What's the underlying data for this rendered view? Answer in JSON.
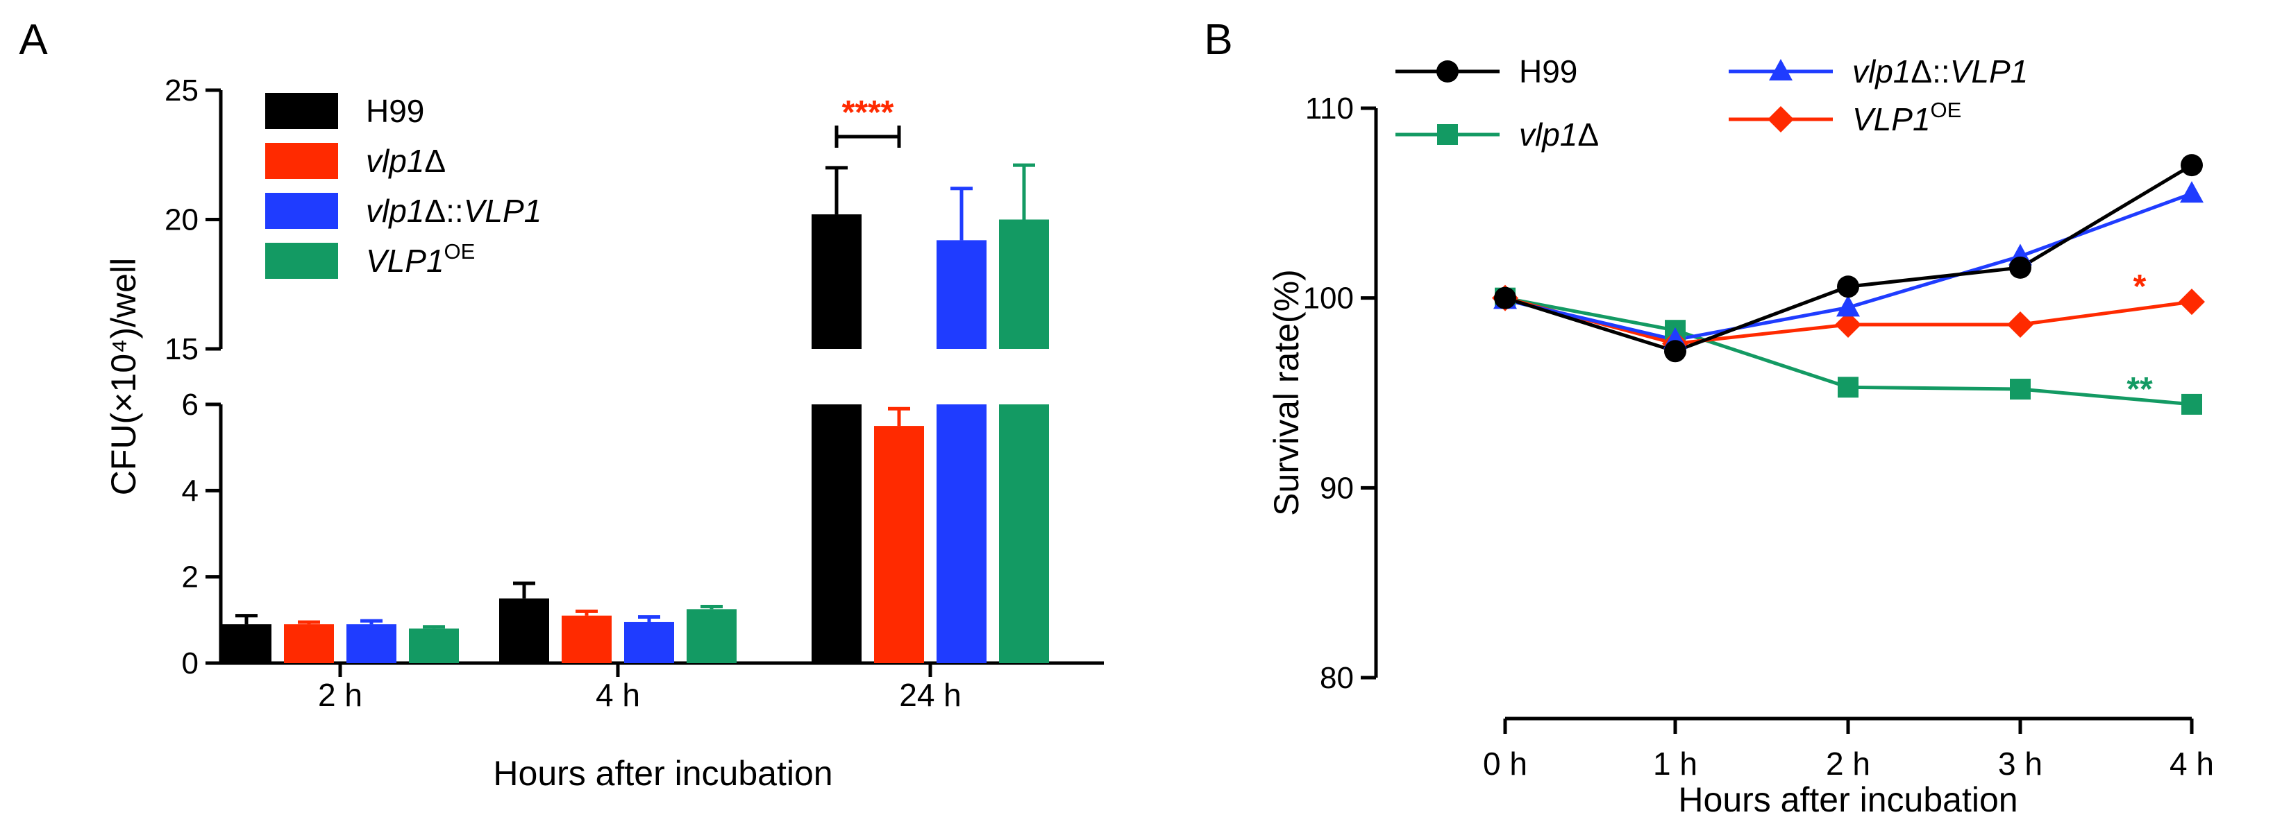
{
  "colors": {
    "H99": "#000000",
    "vlp1d": "#ff2a00",
    "vlp1d_vlp1": "#1f3cff",
    "vlp1_oe": "#139a63"
  },
  "chart_data": [
    {
      "panel_label": "A",
      "type": "bar",
      "xlabel": "Hours after incubation",
      "ylabel": "CFU(×10⁴)/well",
      "categories": [
        "2 h",
        "4 h",
        "24 h"
      ],
      "axis_break": {
        "lower_ylim": [
          0,
          6
        ],
        "upper_ylim": [
          15,
          25
        ]
      },
      "lower_ticks": [
        "0",
        "2",
        "4",
        "6"
      ],
      "upper_ticks": [
        "15",
        "20",
        "25"
      ],
      "series": [
        {
          "name": "H99",
          "key": "H99",
          "name_italic": "",
          "name_plain": "H99",
          "name_sup": "",
          "values": [
            0.9,
            1.5,
            20.2
          ],
          "errors": [
            0.2,
            0.35,
            1.8
          ]
        },
        {
          "name": "vlp1Δ",
          "key": "vlp1d",
          "name_italic": "vlp1",
          "name_plain": "Δ",
          "name_sup": "",
          "values": [
            0.9,
            1.1,
            5.5
          ],
          "errors": [
            0.05,
            0.1,
            0.4
          ]
        },
        {
          "name": "vlp1Δ::VLP1",
          "key": "vlp1d_vlp1",
          "name_italic": "vlp1",
          "name_plain": "Δ::",
          "name_italic2": "VLP1",
          "name_sup": "",
          "values": [
            0.9,
            0.95,
            19.2
          ],
          "errors": [
            0.08,
            0.12,
            2.0
          ]
        },
        {
          "name": "VLP1OE",
          "key": "vlp1_oe",
          "name_italic": "VLP1",
          "name_plain": "",
          "name_sup": "OE",
          "values": [
            0.8,
            1.25,
            20.0
          ],
          "errors": [
            0.04,
            0.06,
            2.1
          ]
        }
      ],
      "annotations": [
        {
          "text": "****",
          "between": [
            "H99",
            "vlp1Δ"
          ],
          "category": "24 h",
          "color": "#ff2a00"
        }
      ]
    },
    {
      "panel_label": "B",
      "type": "line",
      "xlabel": "Hours after incubation",
      "ylabel": "Survival rate(%)",
      "categories": [
        "0 h",
        "1 h",
        "2 h",
        "3 h",
        "4 h"
      ],
      "ylim": [
        80,
        110
      ],
      "yticks": [
        "80",
        "90",
        "100",
        "110"
      ],
      "series": [
        {
          "name": "H99",
          "key": "H99",
          "marker": "circle",
          "name_italic": "",
          "name_plain": "H99",
          "name_sup": "",
          "values": [
            100,
            97.2,
            100.6,
            101.6,
            107
          ]
        },
        {
          "name": "vlp1Δ",
          "key": "vlp1_oe",
          "marker": "square",
          "name_italic": "vlp1",
          "name_plain": "Δ",
          "name_sup": "",
          "values": [
            100,
            98.3,
            95.3,
            95.2,
            94.4
          ]
        },
        {
          "name": "vlp1Δ::VLP1",
          "key": "vlp1d_vlp1",
          "marker": "triangle",
          "name_italic": "vlp1",
          "name_plain": "Δ::",
          "name_italic2": "VLP1",
          "name_sup": "",
          "values": [
            99.9,
            97.8,
            99.5,
            102.2,
            105.5
          ]
        },
        {
          "name": "VLP1OE",
          "key": "vlp1d",
          "marker": "diamond",
          "name_italic": "VLP1",
          "name_plain": "",
          "name_sup": "OE",
          "values": [
            100,
            97.6,
            98.6,
            98.6,
            99.8
          ]
        }
      ],
      "annotations": [
        {
          "text": "*",
          "series": "VLP1OE",
          "category": "4 h",
          "color": "#ff2a00"
        },
        {
          "text": "**",
          "series": "vlp1Δ",
          "category": "4 h",
          "color": "#139a63"
        }
      ]
    }
  ]
}
